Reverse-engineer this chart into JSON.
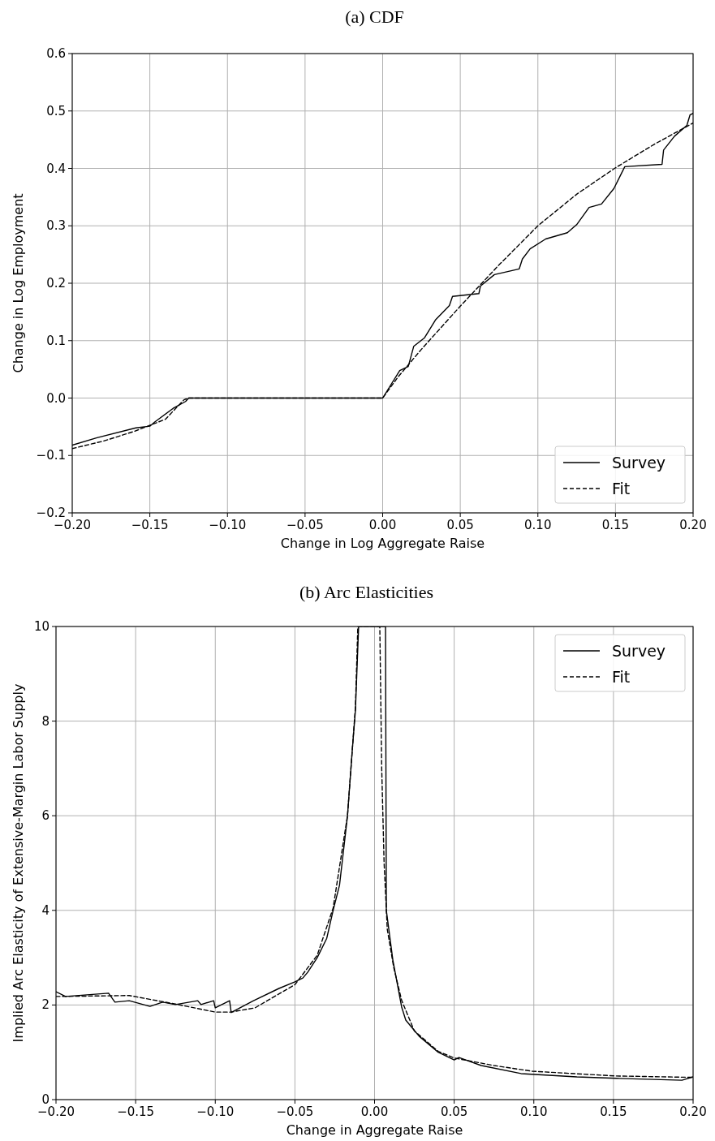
{
  "chart_data": [
    {
      "type": "line",
      "title": "(a) CDF",
      "xlabel": "Change in Log Aggregate Raise",
      "ylabel": "Change in Log Employment",
      "xlim": [
        -0.2,
        0.2
      ],
      "ylim": [
        -0.2,
        0.6
      ],
      "xticks": [
        {
          "value": -0.2,
          "label": "−0.20"
        },
        {
          "value": -0.15,
          "label": "−0.15"
        },
        {
          "value": -0.1,
          "label": "−0.10"
        },
        {
          "value": -0.05,
          "label": "−0.05"
        },
        {
          "value": 0,
          "label": "0.00"
        },
        {
          "value": 0.05,
          "label": "0.05"
        },
        {
          "value": 0.1,
          "label": "0.10"
        },
        {
          "value": 0.15,
          "label": "0.15"
        },
        {
          "value": 0.2,
          "label": "0.20"
        }
      ],
      "yticks": [
        {
          "value": -0.2,
          "label": "−0.2"
        },
        {
          "value": -0.1,
          "label": "−0.1"
        },
        {
          "value": 0,
          "label": "0.0"
        },
        {
          "value": 0.1,
          "label": "0.1"
        },
        {
          "value": 0.2,
          "label": "0.2"
        },
        {
          "value": 0.3,
          "label": "0.3"
        },
        {
          "value": 0.4,
          "label": "0.4"
        },
        {
          "value": 0.5,
          "label": "0.5"
        },
        {
          "value": 0.6,
          "label": "0.6"
        }
      ],
      "grid": true,
      "legend": "bottom right",
      "series": [
        {
          "name": "Survey",
          "color": "#000000",
          "line_style": "solid",
          "x": [
            -0.2,
            -0.184,
            -0.159,
            -0.15,
            -0.147,
            -0.135,
            -0.127,
            -0.125,
            0,
            0.011,
            0.0165,
            0.02,
            0.027,
            0.034,
            0.043,
            0.045,
            0.062,
            0.063,
            0.072,
            0.088,
            0.09,
            0.095,
            0.105,
            0.119,
            0.125,
            0.133,
            0.141,
            0.149,
            0.156,
            0.18,
            0.181,
            0.188,
            0.196,
            0.198,
            0.2
          ],
          "values": [
            -0.082,
            -0.069,
            -0.052,
            -0.049,
            -0.042,
            -0.018,
            -0.006,
            0,
            0,
            0.048,
            0.055,
            0.09,
            0.105,
            0.136,
            0.161,
            0.177,
            0.182,
            0.195,
            0.215,
            0.225,
            0.242,
            0.26,
            0.277,
            0.288,
            0.302,
            0.332,
            0.338,
            0.365,
            0.403,
            0.407,
            0.432,
            0.456,
            0.475,
            0.493,
            0.496
          ]
        },
        {
          "name": "Fit",
          "color": "#000000",
          "line_style": "dashed",
          "x": [
            -0.2,
            -0.18,
            -0.16,
            -0.14,
            -0.128,
            -0.125,
            0,
            0.01,
            0.025,
            0.05,
            0.075,
            0.1,
            0.125,
            0.15,
            0.175,
            0.2
          ],
          "values": [
            -0.088,
            -0.075,
            -0.058,
            -0.037,
            -0.003,
            0,
            0,
            0.037,
            0.085,
            0.16,
            0.232,
            0.3,
            0.355,
            0.401,
            0.442,
            0.479
          ]
        }
      ]
    },
    {
      "type": "line",
      "title": "(b) Arc Elasticities",
      "xlabel": "Change in Aggregate Raise",
      "ylabel": "Implied Arc Elasticity of Extensive-Margin Labor Supply",
      "xlim": [
        -0.2,
        0.2
      ],
      "ylim": [
        0,
        10
      ],
      "xticks": [
        {
          "value": -0.2,
          "label": "−0.20"
        },
        {
          "value": -0.15,
          "label": "−0.15"
        },
        {
          "value": -0.1,
          "label": "−0.10"
        },
        {
          "value": -0.05,
          "label": "−0.05"
        },
        {
          "value": 0,
          "label": "0.00"
        },
        {
          "value": 0.05,
          "label": "0.05"
        },
        {
          "value": 0.1,
          "label": "0.10"
        },
        {
          "value": 0.15,
          "label": "0.15"
        },
        {
          "value": 0.2,
          "label": "0.20"
        }
      ],
      "yticks": [
        0,
        2,
        4,
        6,
        8,
        10
      ],
      "grid": true,
      "legend": "top right",
      "series": [
        {
          "name": "Survey",
          "color": "#000000",
          "line_style": "solid",
          "x": [
            -0.2,
            -0.194,
            -0.167,
            -0.163,
            -0.154,
            -0.141,
            -0.133,
            -0.125,
            -0.111,
            -0.109,
            -0.101,
            -0.1,
            -0.091,
            -0.09,
            -0.076,
            -0.06,
            -0.05,
            -0.045,
            -0.042,
            -0.036,
            -0.03,
            -0.026,
            -0.022,
            -0.017,
            -0.014,
            -0.012,
            -0.01,
            0.0069,
            0.0074,
            0.0115,
            0.017,
            0.0196,
            0.028,
            0.04,
            0.05,
            0.053,
            0.067,
            0.092,
            0.127,
            0.152,
            0.193,
            0.2
          ],
          "values": [
            2.28,
            2.18,
            2.25,
            2.06,
            2.09,
            1.97,
            2.06,
            2.01,
            2.09,
            2.01,
            2.09,
            1.94,
            2.09,
            1.84,
            2.09,
            2.35,
            2.49,
            2.57,
            2.69,
            3.0,
            3.41,
            4.0,
            4.53,
            5.99,
            7.38,
            8.23,
            10,
            10,
            4.0,
            2.95,
            1.96,
            1.68,
            1.34,
            1.0,
            0.84,
            0.89,
            0.72,
            0.55,
            0.48,
            0.45,
            0.41,
            0.48
          ]
        },
        {
          "name": "Fit",
          "color": "#000000",
          "line_style": "dashed",
          "x": [
            -0.2,
            -0.154,
            -0.125,
            -0.1,
            -0.09,
            -0.075,
            -0.05,
            -0.036,
            -0.026,
            -0.017,
            -0.012,
            -0.0105,
            0.0033,
            0.0045,
            0.006,
            0.008,
            0.012,
            0.017,
            0.025,
            0.04,
            0.05,
            0.075,
            0.099,
            0.151,
            0.2
          ],
          "values": [
            2.18,
            2.2,
            2.02,
            1.85,
            1.85,
            1.94,
            2.43,
            3.05,
            4.05,
            6.0,
            8.3,
            10,
            10,
            7,
            5,
            3.6,
            2.8,
            2.1,
            1.45,
            1.02,
            0.88,
            0.72,
            0.6,
            0.5,
            0.47
          ]
        }
      ]
    }
  ]
}
